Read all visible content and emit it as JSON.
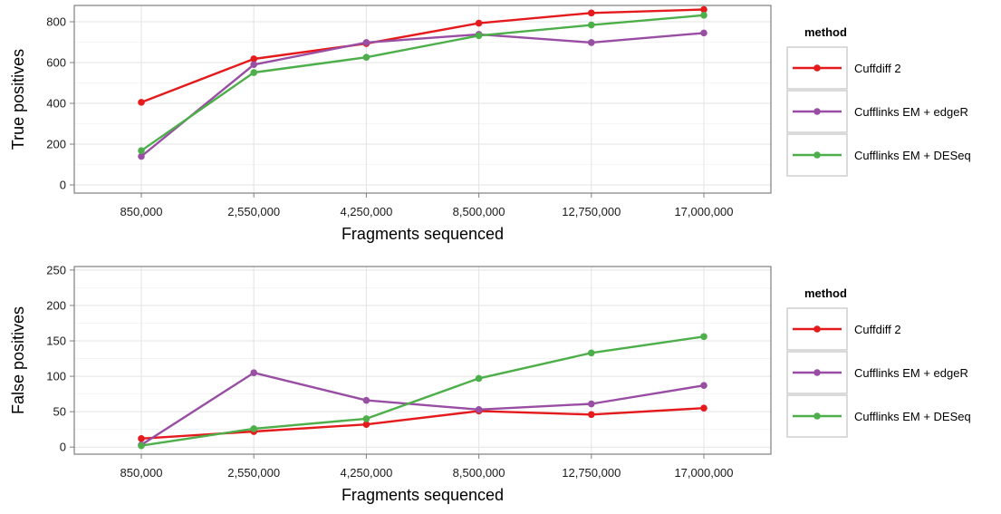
{
  "chart_data": [
    {
      "type": "line",
      "xlabel": "Fragments sequenced",
      "ylabel": "True positives",
      "categories": [
        "850,000",
        "2,550,000",
        "4,250,000",
        "8,500,000",
        "12,750,000",
        "17,000,000"
      ],
      "ylim": [
        -40,
        880
      ],
      "yticks": [
        0,
        200,
        400,
        600,
        800
      ],
      "grid": true,
      "legend_title": "method",
      "legend_position": "right",
      "series": [
        {
          "name": "Cuffdiff 2",
          "color": "#e41a1c",
          "values": [
            405,
            618,
            693,
            793,
            843,
            860
          ]
        },
        {
          "name": "Cufflinks EM + edgeR",
          "color": "#984ea3",
          "values": [
            140,
            590,
            698,
            738,
            698,
            745
          ]
        },
        {
          "name": "Cufflinks EM + DESeq",
          "color": "#4daf4a",
          "values": [
            168,
            551,
            626,
            732,
            784,
            832
          ]
        }
      ]
    },
    {
      "type": "line",
      "xlabel": "Fragments sequenced",
      "ylabel": "False positives",
      "categories": [
        "850,000",
        "2,550,000",
        "4,250,000",
        "8,500,000",
        "12,750,000",
        "17,000,000"
      ],
      "ylim": [
        -10,
        255
      ],
      "yticks": [
        0,
        50,
        100,
        150,
        200,
        250
      ],
      "grid": true,
      "legend_title": "method",
      "legend_position": "right",
      "series": [
        {
          "name": "Cuffdiff 2",
          "color": "#e41a1c",
          "values": [
            12,
            22,
            32,
            51,
            46,
            55
          ]
        },
        {
          "name": "Cufflinks EM + edgeR",
          "color": "#984ea3",
          "values": [
            3,
            105,
            66,
            53,
            61,
            87
          ]
        },
        {
          "name": "Cufflinks EM + DESeq",
          "color": "#4daf4a",
          "values": [
            2,
            26,
            40,
            97,
            133,
            156
          ]
        }
      ]
    }
  ]
}
